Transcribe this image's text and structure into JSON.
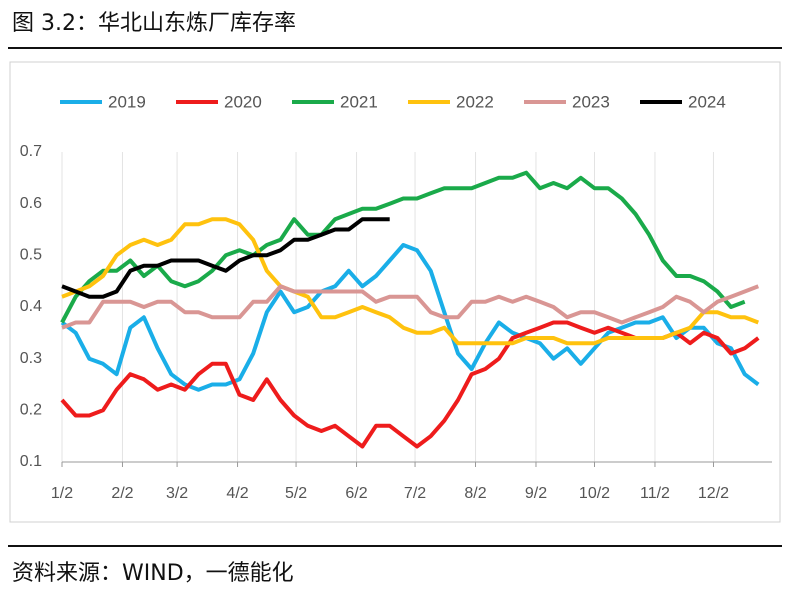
{
  "title": "图 3.2：华北山东炼厂库存率",
  "source": "资料来源：WIND，一德能化",
  "chart_data": {
    "type": "line",
    "grid": "x",
    "legend": "top",
    "x": [
      1,
      8,
      15,
      22,
      29,
      36,
      43,
      50,
      57,
      64,
      71,
      78,
      85,
      92,
      99,
      106,
      113,
      120,
      127,
      134,
      141,
      148,
      155,
      162,
      169,
      176,
      183,
      190,
      197,
      204,
      211,
      218,
      225,
      232,
      239,
      246,
      253,
      260,
      267,
      274,
      281,
      288,
      295,
      302,
      309,
      316,
      323,
      330,
      337,
      344,
      351,
      358
    ],
    "xlim": [
      1,
      365
    ],
    "xticks": [
      {
        "value": 1,
        "label": "1/2"
      },
      {
        "value": 32,
        "label": "2/2"
      },
      {
        "value": 60,
        "label": "3/2"
      },
      {
        "value": 91,
        "label": "4/2"
      },
      {
        "value": 121,
        "label": "5/2"
      },
      {
        "value": 152,
        "label": "6/2"
      },
      {
        "value": 182,
        "label": "7/2"
      },
      {
        "value": 213,
        "label": "8/2"
      },
      {
        "value": 244,
        "label": "9/2"
      },
      {
        "value": 274,
        "label": "10/2"
      },
      {
        "value": 305,
        "label": "11/2"
      },
      {
        "value": 335,
        "label": "12/2"
      }
    ],
    "ylim": [
      0.1,
      0.7
    ],
    "yticks": [
      0.1,
      0.2,
      0.3,
      0.4,
      0.5,
      0.6,
      0.7
    ],
    "series": [
      {
        "name": "2019",
        "color": "#1aaee8",
        "values": [
          0.37,
          0.35,
          0.3,
          0.29,
          0.27,
          0.36,
          0.38,
          0.32,
          0.27,
          0.25,
          0.24,
          0.25,
          0.25,
          0.26,
          0.31,
          0.39,
          0.43,
          0.39,
          0.4,
          0.43,
          0.44,
          0.47,
          0.44,
          0.46,
          0.49,
          0.52,
          0.51,
          0.47,
          0.39,
          0.31,
          0.28,
          0.33,
          0.37,
          0.35,
          0.34,
          0.33,
          0.3,
          0.32,
          0.29,
          0.32,
          0.35,
          0.36,
          0.37,
          0.37,
          0.38,
          0.34,
          0.36,
          0.36,
          0.33,
          0.32,
          0.27,
          0.25
        ]
      },
      {
        "name": "2020",
        "color": "#ee1c1c",
        "values": [
          0.22,
          0.19,
          0.19,
          0.2,
          0.24,
          0.27,
          0.26,
          0.24,
          0.25,
          0.24,
          0.27,
          0.29,
          0.29,
          0.23,
          0.22,
          0.26,
          0.22,
          0.19,
          0.17,
          0.16,
          0.17,
          0.15,
          0.13,
          0.17,
          0.17,
          0.15,
          0.13,
          0.15,
          0.18,
          0.22,
          0.27,
          0.28,
          0.3,
          0.34,
          0.35,
          0.36,
          0.37,
          0.37,
          0.36,
          0.35,
          0.36,
          0.35,
          0.34,
          0.34,
          0.34,
          0.35,
          0.33,
          0.35,
          0.34,
          0.31,
          0.32,
          0.34
        ]
      },
      {
        "name": "2021",
        "color": "#1aaa4a",
        "values": [
          0.37,
          0.42,
          0.45,
          0.47,
          0.47,
          0.49,
          0.46,
          0.48,
          0.45,
          0.44,
          0.45,
          0.47,
          0.5,
          0.51,
          0.5,
          0.52,
          0.53,
          0.57,
          0.54,
          0.54,
          0.57,
          0.58,
          0.59,
          0.59,
          0.6,
          0.61,
          0.61,
          0.62,
          0.63,
          0.63,
          0.63,
          0.64,
          0.65,
          0.65,
          0.66,
          0.63,
          0.64,
          0.63,
          0.65,
          0.63,
          0.63,
          0.61,
          0.58,
          0.54,
          0.49,
          0.46,
          0.46,
          0.45,
          0.43,
          0.4,
          0.41,
          null
        ]
      },
      {
        "name": "2022",
        "color": "#ffc20e",
        "values": [
          0.42,
          0.43,
          0.44,
          0.46,
          0.5,
          0.52,
          0.53,
          0.52,
          0.53,
          0.56,
          0.56,
          0.57,
          0.57,
          0.56,
          0.53,
          0.47,
          0.44,
          0.43,
          0.42,
          0.38,
          0.38,
          0.39,
          0.4,
          0.39,
          0.38,
          0.36,
          0.35,
          0.35,
          0.36,
          0.33,
          0.33,
          0.33,
          0.33,
          0.33,
          0.34,
          0.34,
          0.34,
          0.33,
          0.33,
          0.33,
          0.34,
          0.34,
          0.34,
          0.34,
          0.34,
          0.35,
          0.36,
          0.39,
          0.39,
          0.38,
          0.38,
          0.37
        ]
      },
      {
        "name": "2023",
        "color": "#d99694",
        "values": [
          0.36,
          0.37,
          0.37,
          0.41,
          0.41,
          0.41,
          0.4,
          0.41,
          0.41,
          0.39,
          0.39,
          0.38,
          0.38,
          0.38,
          0.41,
          0.41,
          0.44,
          0.43,
          0.43,
          0.43,
          0.43,
          0.43,
          0.43,
          0.41,
          0.42,
          0.42,
          0.42,
          0.39,
          0.38,
          0.38,
          0.41,
          0.41,
          0.42,
          0.41,
          0.42,
          0.41,
          0.4,
          0.38,
          0.39,
          0.39,
          0.38,
          0.37,
          0.38,
          0.39,
          0.4,
          0.42,
          0.41,
          0.39,
          0.41,
          0.42,
          0.43,
          0.44
        ]
      },
      {
        "name": "2024",
        "color": "#000000",
        "values": [
          0.44,
          0.43,
          0.42,
          0.42,
          0.43,
          0.47,
          0.48,
          0.48,
          0.49,
          0.49,
          0.49,
          0.48,
          0.47,
          0.49,
          0.5,
          0.5,
          0.51,
          0.53,
          0.53,
          0.54,
          0.55,
          0.55,
          0.57,
          0.57,
          0.57,
          null,
          null,
          null,
          null,
          null,
          null,
          null,
          null,
          null,
          null,
          null,
          null,
          null,
          null,
          null,
          null,
          null,
          null,
          null,
          null,
          null,
          null,
          null,
          null,
          null,
          null,
          null
        ]
      }
    ]
  }
}
